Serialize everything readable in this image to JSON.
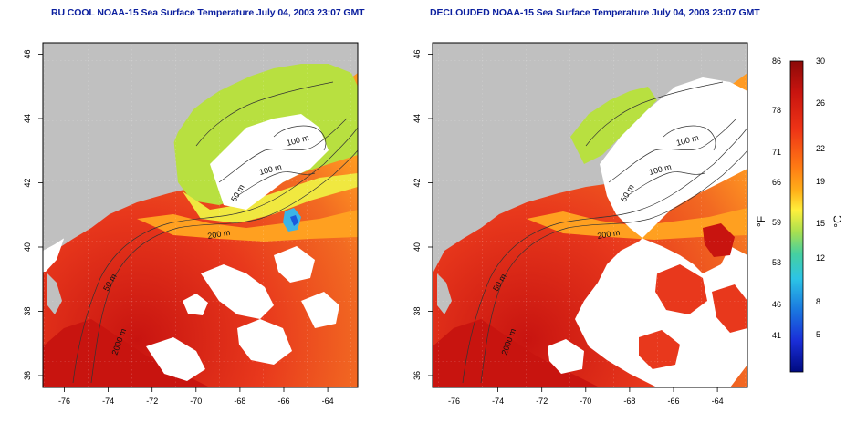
{
  "panels": [
    {
      "id": "left",
      "title": "RU COOL NOAA-15 Sea Surface Temperature July 04, 2003 23:07 GMT",
      "contour_labels": [
        "100 m",
        "100 m",
        "50 m",
        "200 m",
        "50 m",
        "2000 m"
      ]
    },
    {
      "id": "right",
      "title": "DECLOUDED NOAA-15 Sea Surface Temperature July 04, 2003 23:07 GMT",
      "contour_labels": [
        "100 m",
        "100 m",
        "50 m",
        "200 m",
        "50 m",
        "2000 m"
      ]
    }
  ],
  "axes": {
    "x_ticks": [
      "-76",
      "-74",
      "-72",
      "-70",
      "-68",
      "-66",
      "-64"
    ],
    "y_ticks": [
      "36",
      "38",
      "40",
      "42",
      "44",
      "46"
    ]
  },
  "colorbar": {
    "unit_left": "°F",
    "unit_right": "°C",
    "fahrenheit_ticks": [
      "86",
      "78",
      "71",
      "66",
      "59",
      "53",
      "46",
      "41"
    ],
    "celsius_ticks": [
      "30",
      "26",
      "22",
      "19",
      "15",
      "12",
      "8",
      "5"
    ]
  },
  "colors": {
    "title": "#0a1e9e",
    "land": "#c0c0c0",
    "cloud": "#ffffff",
    "warm": "#e8301a",
    "hot": "#c8140f",
    "mid": "#ff8c1a",
    "cool": "#b8e040",
    "cold": "#3cb4e6"
  }
}
